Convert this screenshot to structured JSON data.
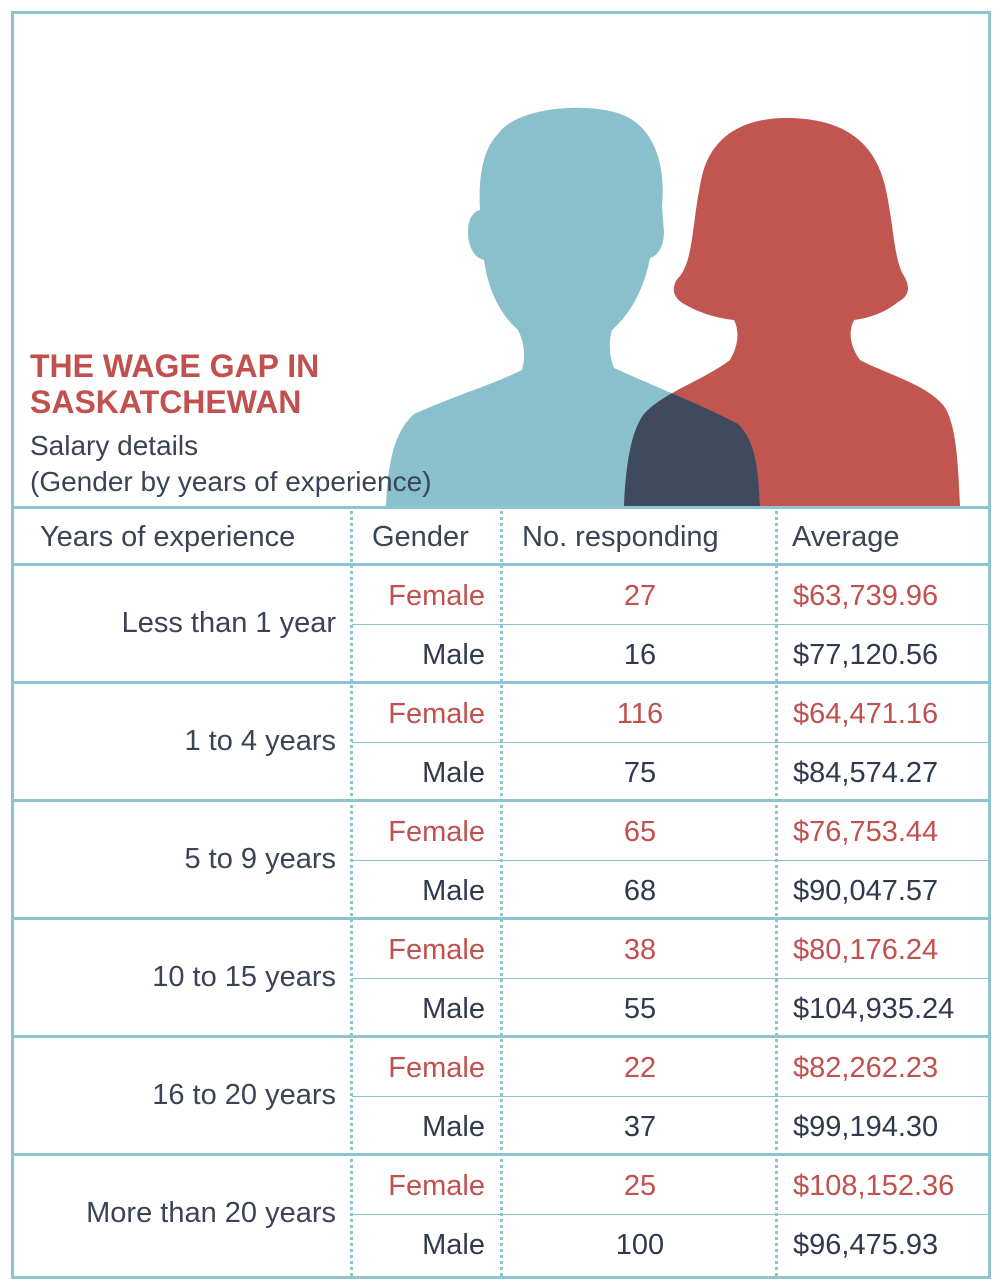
{
  "colors": {
    "female": "#c0514f",
    "male": "#2f3a4e",
    "male_silhouette": "#8ac0cc",
    "female_silhouette": "#c0564f",
    "overlap": "#3f4a5e",
    "border": "#8ec4cf"
  },
  "icons": [
    "male-silhouette-icon",
    "female-silhouette-icon"
  ],
  "chart_data": {
    "type": "table",
    "title_line1": "THE WAGE GAP IN",
    "title_line2": "SASKATCHEWAN",
    "subtitle_line1": "Salary details",
    "subtitle_line2": "(Gender by years of experience)",
    "columns": [
      "Years of experience",
      "Gender",
      "No. responding",
      "Average"
    ],
    "groups": [
      {
        "years": "Less than 1 year",
        "rows": [
          {
            "gender": "Female",
            "count": "27",
            "average": "$63,739.96"
          },
          {
            "gender": "Male",
            "count": "16",
            "average": "$77,120.56"
          }
        ]
      },
      {
        "years": "1 to 4 years",
        "rows": [
          {
            "gender": "Female",
            "count": "116",
            "average": "$64,471.16"
          },
          {
            "gender": "Male",
            "count": "75",
            "average": "$84,574.27"
          }
        ]
      },
      {
        "years": "5 to 9 years",
        "rows": [
          {
            "gender": "Female",
            "count": "65",
            "average": "$76,753.44"
          },
          {
            "gender": "Male",
            "count": "68",
            "average": "$90,047.57"
          }
        ]
      },
      {
        "years": "10 to 15 years",
        "rows": [
          {
            "gender": "Female",
            "count": "38",
            "average": "$80,176.24"
          },
          {
            "gender": "Male",
            "count": "55",
            "average": "$104,935.24"
          }
        ]
      },
      {
        "years": "16 to 20 years",
        "rows": [
          {
            "gender": "Female",
            "count": "22",
            "average": "$82,262.23"
          },
          {
            "gender": "Male",
            "count": "37",
            "average": "$99,194.30"
          }
        ]
      },
      {
        "years": "More than 20 years",
        "rows": [
          {
            "gender": "Female",
            "count": "25",
            "average": "$108,152.36"
          },
          {
            "gender": "Male",
            "count": "100",
            "average": "$96,475.93"
          }
        ]
      }
    ]
  }
}
